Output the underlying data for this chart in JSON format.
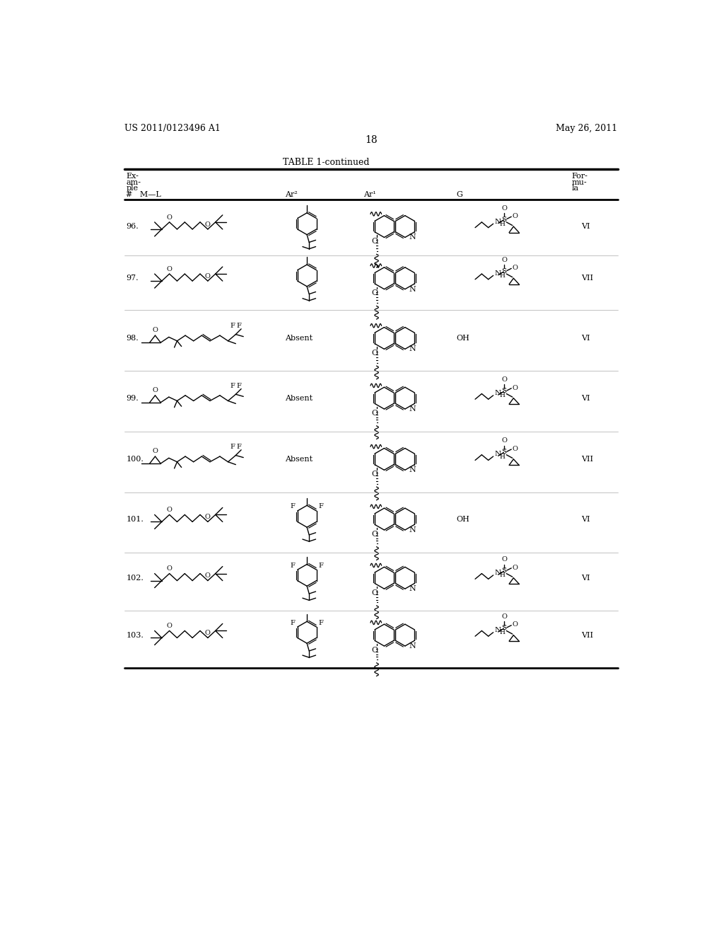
{
  "page_header_left": "US 2011/0123496 A1",
  "page_header_right": "May 26, 2011",
  "page_number": "18",
  "table_title": "TABLE 1-continued",
  "bg_color": "#ffffff",
  "row_nums": [
    "96.",
    "97.",
    "98.",
    "99.",
    "100.",
    "101.",
    "102.",
    "103."
  ],
  "formulas": [
    "VI",
    "VII",
    "VI",
    "VI",
    "VII",
    "VI",
    "VI",
    "VII"
  ],
  "ar2_absent": [
    false,
    false,
    true,
    true,
    true,
    false,
    false,
    false
  ],
  "g_oh": [
    false,
    false,
    true,
    false,
    false,
    true,
    false,
    false
  ],
  "ml_long": [
    false,
    false,
    true,
    true,
    true,
    false,
    false,
    false
  ],
  "ar2_difluoro": [
    false,
    false,
    false,
    false,
    false,
    true,
    true,
    true
  ]
}
